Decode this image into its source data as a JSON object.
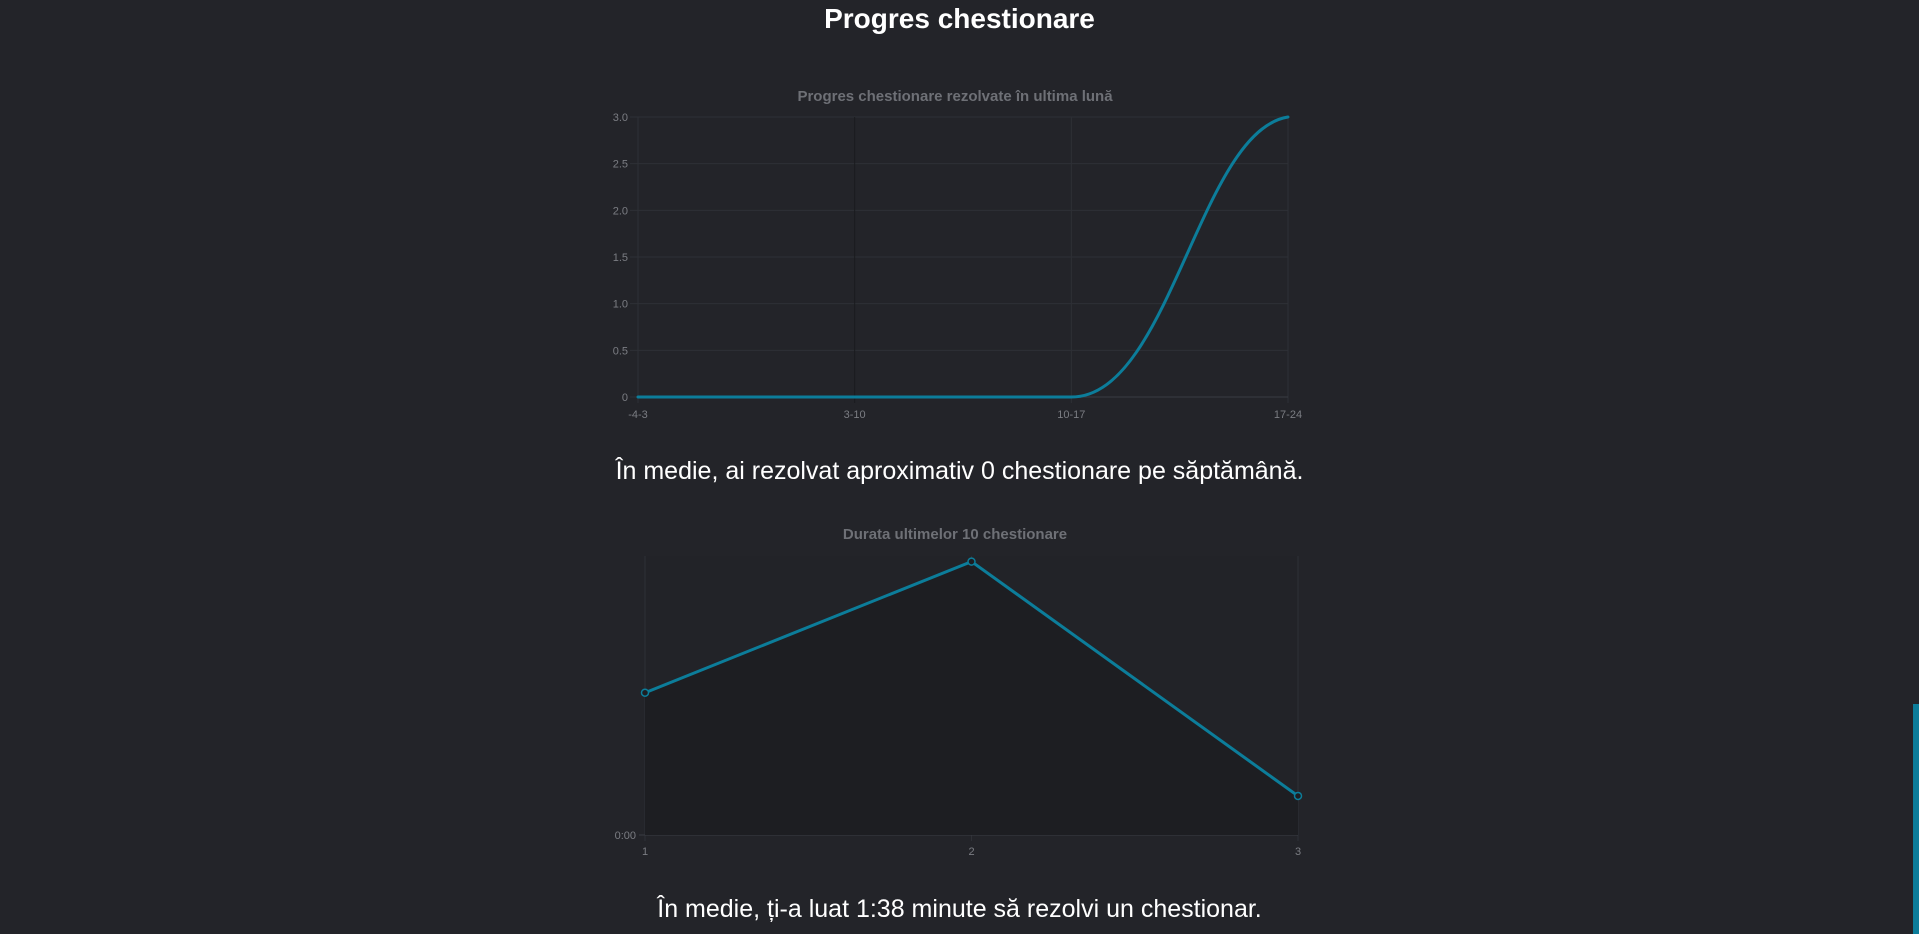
{
  "page_title": "Progres chestionare",
  "summary_weekly": "În medie, ai rezolvat aproximativ 0 chestionare pe săptămână.",
  "summary_duration": "În medie, ți-a luat 1:38 minute să rezolvi un chestionar.",
  "colors": {
    "background": "#232429",
    "line": "#0c7d9a",
    "grid": "#2e3036",
    "tick_text": "#7b7d83",
    "chart_title_text": "#6e7076",
    "plot_fill_dark": "#1d1e22"
  },
  "chart_data": [
    {
      "type": "line",
      "title": "Progres chestionare rezolvate în ultima lună",
      "categories": [
        "-4-3",
        "3-10",
        "10-17",
        "17-24"
      ],
      "series": [
        {
          "values": [
            0,
            0,
            0,
            3
          ]
        }
      ],
      "ylim": [
        0,
        3
      ],
      "y_ticks": [
        "0",
        "0.5",
        "1.0",
        "1.5",
        "2.0",
        "2.5",
        "3.0"
      ],
      "grid": true,
      "smooth": true
    },
    {
      "type": "line",
      "title": "Durata ultimelor 10 chestionare",
      "categories": [
        "1",
        "2",
        "3"
      ],
      "series": [
        {
          "values": [
            0.51,
            0.98,
            0.14
          ]
        }
      ],
      "ylim": [
        0,
        1
      ],
      "y_ticks": [
        "0:00"
      ],
      "grid": true,
      "points": true,
      "filled_area": true
    }
  ]
}
